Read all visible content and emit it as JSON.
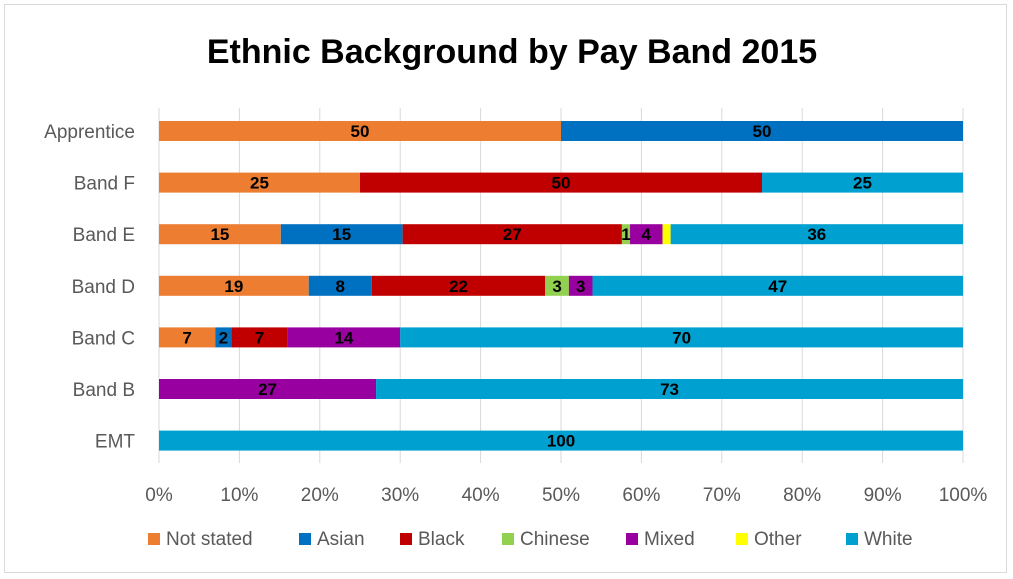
{
  "chart_data": {
    "type": "bar",
    "orientation": "horizontal",
    "stacked": "percent",
    "title": "Ethnic Background by Pay Band 2015",
    "categories": [
      "Apprentice",
      "Band F",
      "Band E",
      "Band D",
      "Band C",
      "Band B",
      "EMT"
    ],
    "xlim": [
      0,
      100
    ],
    "ticks": [
      "0%",
      "10%",
      "20%",
      "30%",
      "40%",
      "50%",
      "60%",
      "70%",
      "80%",
      "90%",
      "100%"
    ],
    "grid": true,
    "legend_position": "bottom",
    "series": [
      {
        "name": "Not stated",
        "color": "#ED7D31",
        "values": [
          50,
          25,
          15,
          19,
          7,
          0,
          0
        ]
      },
      {
        "name": "Asian",
        "color": "#0070C0",
        "values": [
          50,
          0,
          15,
          8,
          2,
          0,
          0
        ]
      },
      {
        "name": "Black",
        "color": "#C00000",
        "values": [
          0,
          50,
          27,
          22,
          7,
          0,
          0
        ]
      },
      {
        "name": "Chinese",
        "color": "#92D050",
        "values": [
          0,
          0,
          1,
          3,
          0,
          0,
          0
        ]
      },
      {
        "name": "Mixed",
        "color": "#9900A0",
        "values": [
          0,
          0,
          4,
          3,
          14,
          27,
          0
        ]
      },
      {
        "name": "Other",
        "color": "#FFFF00",
        "values": [
          0,
          0,
          1,
          0,
          0,
          0,
          0
        ]
      },
      {
        "name": "White",
        "color": "#00A0D0",
        "values": [
          0,
          25,
          36,
          47,
          70,
          73,
          100
        ]
      }
    ],
    "data_labels": [
      [
        "50",
        "50",
        "",
        "",
        "",
        "",
        ""
      ],
      [
        "25",
        "",
        "50",
        "",
        "",
        "",
        "25"
      ],
      [
        "15",
        "15",
        "27",
        "1",
        "4",
        "",
        "36"
      ],
      [
        "19",
        "8",
        "22",
        "3",
        "3",
        "",
        "47"
      ],
      [
        "7",
        "2",
        "7",
        "",
        "14",
        "",
        "70"
      ],
      [
        "",
        "",
        "",
        "",
        "27",
        "",
        "73"
      ],
      [
        "",
        "",
        "",
        "",
        "",
        "",
        "100"
      ]
    ]
  }
}
